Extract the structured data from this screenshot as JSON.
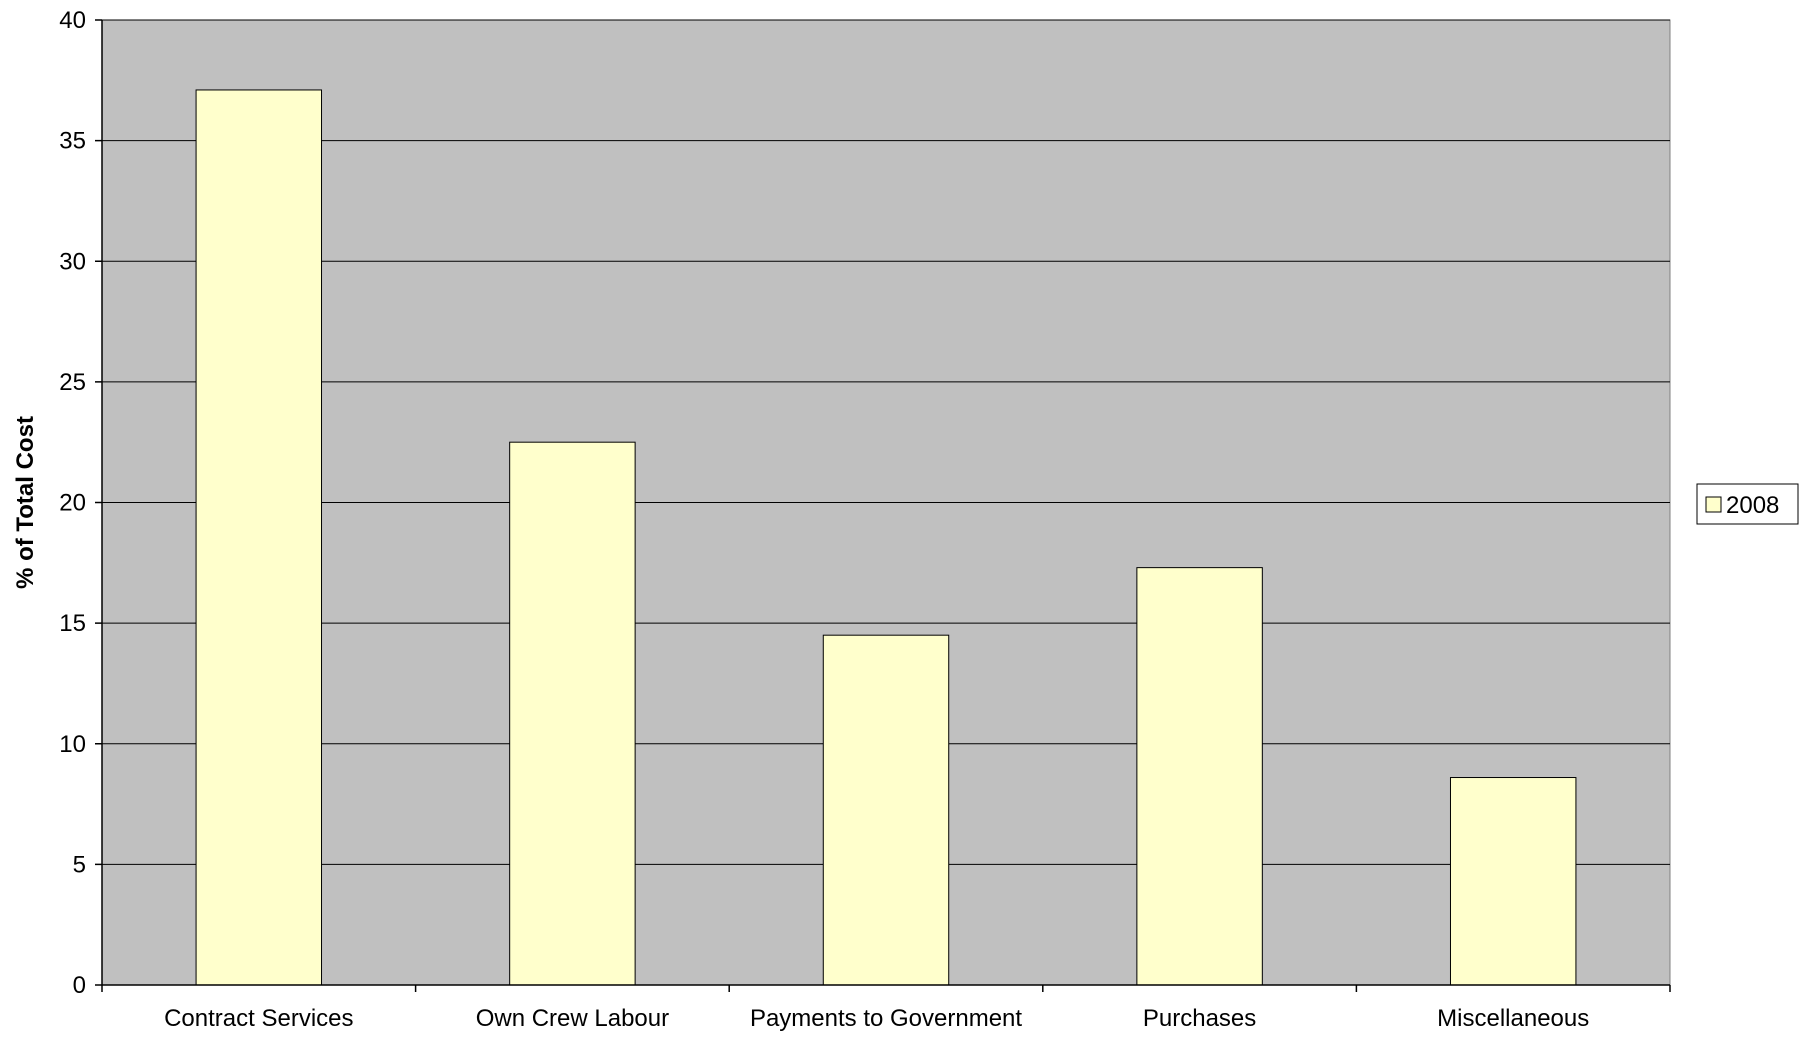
{
  "chart_data": {
    "type": "bar",
    "title": "",
    "xlabel": "",
    "ylabel": "% of Total Cost",
    "categories": [
      "Contract Services",
      "Own Crew Labour",
      "Payments to Government",
      "Purchases",
      "Miscellaneous"
    ],
    "series": [
      {
        "name": "2008",
        "values": [
          37.1,
          22.5,
          14.5,
          17.3,
          8.6
        ]
      }
    ],
    "ylim": [
      0,
      40
    ],
    "yticks": [
      0,
      5,
      10,
      15,
      20,
      25,
      30,
      35,
      40
    ],
    "grid": true,
    "legend_position": "right",
    "colors": {
      "plot_background": "#c0c0c0",
      "bar_fill": "#ffffcc",
      "bar_stroke": "#000000",
      "gridline": "#000000"
    }
  }
}
